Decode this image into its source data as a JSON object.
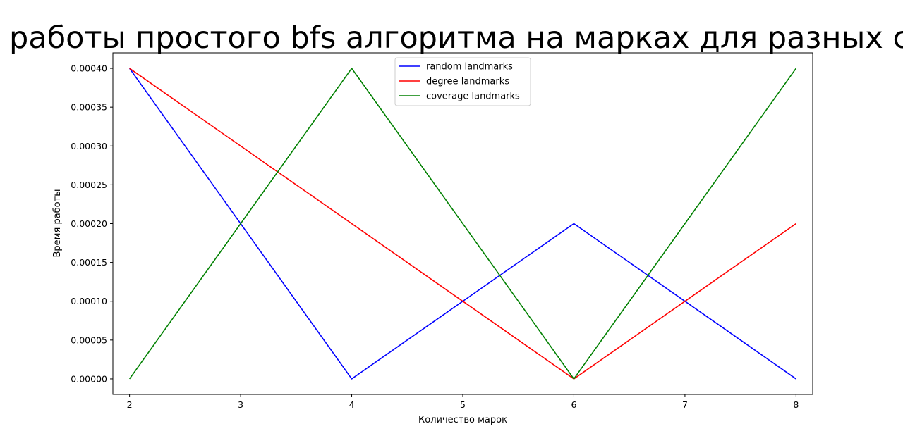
{
  "chart_data": {
    "type": "line",
    "title": "работы простого bfs алгоритма на марках для разных стр",
    "xlabel": "Количество марок",
    "ylabel": "Время работы",
    "x": [
      2,
      3,
      4,
      5,
      6,
      7,
      8
    ],
    "xlim": [
      1.85,
      8.15
    ],
    "ylim": [
      -2e-05,
      0.00042
    ],
    "x_ticks": [
      "2",
      "3",
      "4",
      "5",
      "6",
      "7",
      "8"
    ],
    "y_ticks": [
      "0.00000",
      "0.00005",
      "0.00010",
      "0.00015",
      "0.00020",
      "0.00025",
      "0.00030",
      "0.00035",
      "0.00040"
    ],
    "grid": false,
    "legend_position": "top-center",
    "series": [
      {
        "name": "random landmarks",
        "color": "#0000ff",
        "x": [
          2,
          4,
          6,
          8
        ],
        "values": [
          0.0004,
          0.0,
          0.0002,
          0.0
        ]
      },
      {
        "name": "degree landmarks",
        "color": "#ff0000",
        "x": [
          2,
          6,
          8
        ],
        "values": [
          0.0004,
          0.0,
          0.0002
        ]
      },
      {
        "name": "coverage landmarks",
        "color": "#008000",
        "x": [
          2,
          4,
          6,
          8
        ],
        "values": [
          0.0,
          0.0004,
          0.0,
          0.0004
        ]
      }
    ]
  }
}
